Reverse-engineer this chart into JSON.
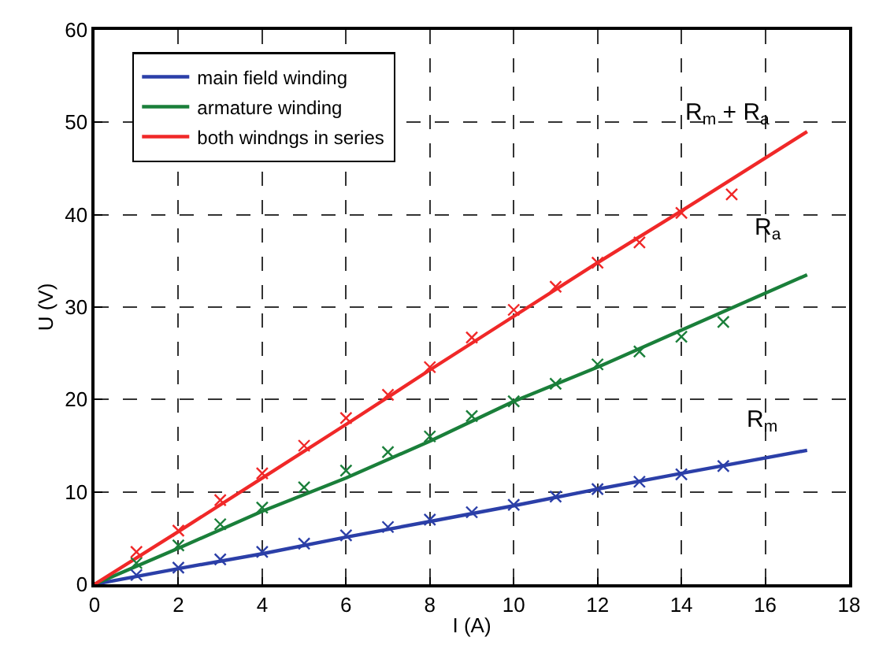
{
  "chart_data": {
    "type": "line",
    "xlabel": "I (A)",
    "ylabel": "U (V)",
    "xlim": [
      0,
      18
    ],
    "xticks": [
      0,
      2,
      4,
      6,
      8,
      10,
      12,
      14,
      16,
      18
    ],
    "ylim": [
      0,
      60
    ],
    "yticks": [
      0,
      10,
      20,
      30,
      40,
      50,
      60
    ],
    "grid": true,
    "legend": "top left",
    "line_style": "solid",
    "series": [
      {
        "name": "main field winding",
        "color": "#2b3fa8",
        "marker": "none",
        "x": [
          0,
          2,
          4,
          6,
          8,
          10,
          12,
          14,
          17
        ],
        "values": [
          0,
          1.7,
          3.3,
          5.1,
          6.8,
          8.5,
          10.3,
          12.0,
          14.5
        ]
      },
      {
        "name": "armature winding",
        "color": "#1a7f3a",
        "marker": "none",
        "x": [
          0,
          2,
          4,
          6,
          8,
          10,
          12,
          14,
          17
        ],
        "values": [
          0,
          3.9,
          7.9,
          11.5,
          15.5,
          19.8,
          23.5,
          27.5,
          33.5
        ]
      },
      {
        "name": "both windngs in series",
        "color": "#f02828",
        "marker": "none",
        "x": [
          0,
          2,
          4,
          6,
          8,
          10,
          12,
          14,
          17
        ],
        "values": [
          0,
          5.7,
          11.5,
          17.3,
          23.2,
          29.0,
          34.8,
          40.4,
          49.0
        ]
      },
      {
        "color": "#2b3fa8",
        "type": "scatter",
        "marker": "cross",
        "x": [
          1,
          2,
          3,
          4,
          5,
          6,
          7,
          8,
          9,
          10,
          11,
          12,
          13,
          14,
          15
        ],
        "values": [
          1.0,
          1.8,
          2.7,
          3.5,
          4.4,
          5.3,
          6.2,
          7.0,
          7.8,
          8.6,
          9.5,
          10.3,
          11.1,
          11.9,
          12.8
        ]
      },
      {
        "color": "#1a7f3a",
        "type": "scatter",
        "marker": "cross",
        "x": [
          1,
          2,
          3,
          4,
          5,
          6,
          7,
          8,
          9,
          10,
          11,
          12,
          13,
          14,
          15
        ],
        "values": [
          2.3,
          4.2,
          6.5,
          8.3,
          10.5,
          12.3,
          14.3,
          16.0,
          18.2,
          19.8,
          21.7,
          23.8,
          25.2,
          26.8,
          28.4
        ]
      },
      {
        "color": "#f02828",
        "type": "scatter",
        "marker": "cross",
        "x": [
          1,
          2,
          3,
          4,
          5,
          6,
          7,
          8,
          9,
          10,
          11,
          12,
          13,
          14,
          15.2
        ],
        "values": [
          3.5,
          5.8,
          9.1,
          12.0,
          15.0,
          18.0,
          20.5,
          23.5,
          26.7,
          29.7,
          32.2,
          34.8,
          37.0,
          40.2,
          42.2
        ]
      }
    ],
    "annotations": [
      "R$_{m}$ + R$_{a}$",
      "R$_{a}$",
      "R$_{m}$"
    ]
  }
}
